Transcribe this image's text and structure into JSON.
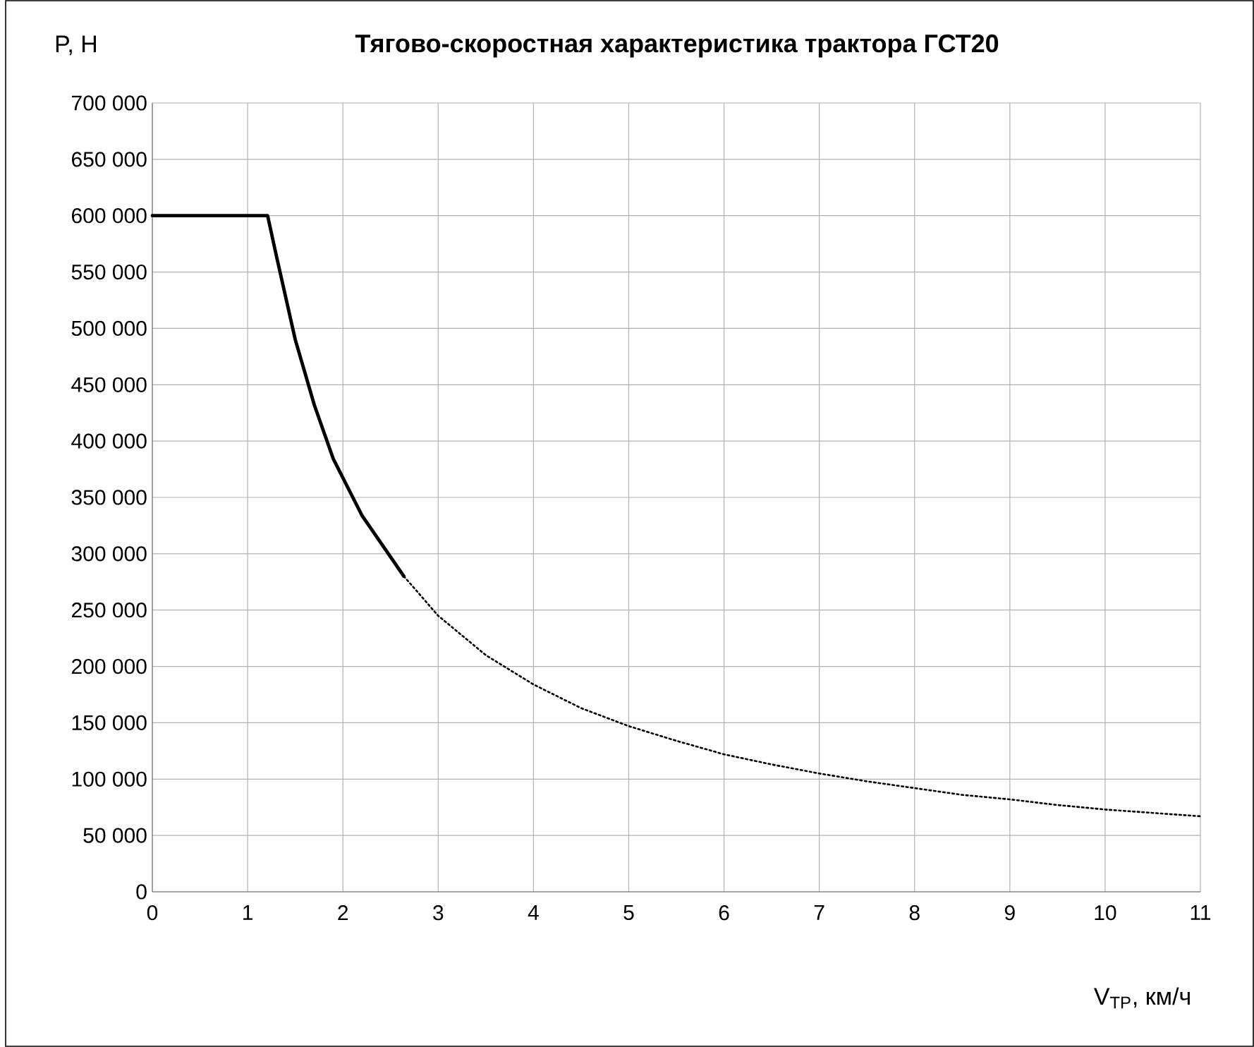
{
  "chart_data": {
    "type": "line",
    "title": "Тягово-скоростная характеристика трактора ГСТ20",
    "xlabel": "V$_{ТР}$, км/ч",
    "ylabel": "P, Н",
    "xlim": [
      0,
      11
    ],
    "xticks": [
      0,
      1,
      2,
      3,
      4,
      5,
      6,
      7,
      8,
      9,
      10,
      11
    ],
    "ylim": [
      0,
      700000
    ],
    "yticks": [
      0,
      {
        "value": 50000,
        "label": "50 000"
      },
      {
        "value": 100000,
        "label": "100 000"
      },
      {
        "value": 150000,
        "label": "150 000"
      },
      {
        "value": 200000,
        "label": "200 000"
      },
      {
        "value": 250000,
        "label": "250 000"
      },
      {
        "value": 300000,
        "label": "300 000"
      },
      {
        "value": 350000,
        "label": "350 000"
      },
      {
        "value": 400000,
        "label": "400 000"
      },
      {
        "value": 450000,
        "label": "450 000"
      },
      {
        "value": 500000,
        "label": "500 000"
      },
      {
        "value": 550000,
        "label": "550 000"
      },
      {
        "value": 600000,
        "label": "600 000"
      },
      {
        "value": 650000,
        "label": "650 000"
      },
      {
        "value": 700000,
        "label": "700 000"
      }
    ],
    "grid": true,
    "marker": "none",
    "series": [
      {
        "color": "#000000",
        "line_style": "solid",
        "x": [
          0,
          1.21,
          1.3,
          1.5,
          1.7,
          1.9,
          2.2,
          2.64
        ],
        "values": [
          600000,
          600000,
          565000,
          490000,
          432000,
          384000,
          334000,
          280000
        ]
      },
      {
        "color": "#000000",
        "line_style": "dotted",
        "x": [
          2.64,
          3,
          3.5,
          4,
          4.5,
          5,
          5.5,
          6,
          6.5,
          7,
          7.5,
          8,
          8.5,
          9,
          9.5,
          10,
          10.5,
          11
        ],
        "values": [
          280000,
          245000,
          210000,
          184000,
          163000,
          147000,
          134000,
          122000,
          113000,
          105000,
          98000,
          92000,
          86000,
          82000,
          77000,
          73000,
          70000,
          67000
        ]
      }
    ]
  }
}
